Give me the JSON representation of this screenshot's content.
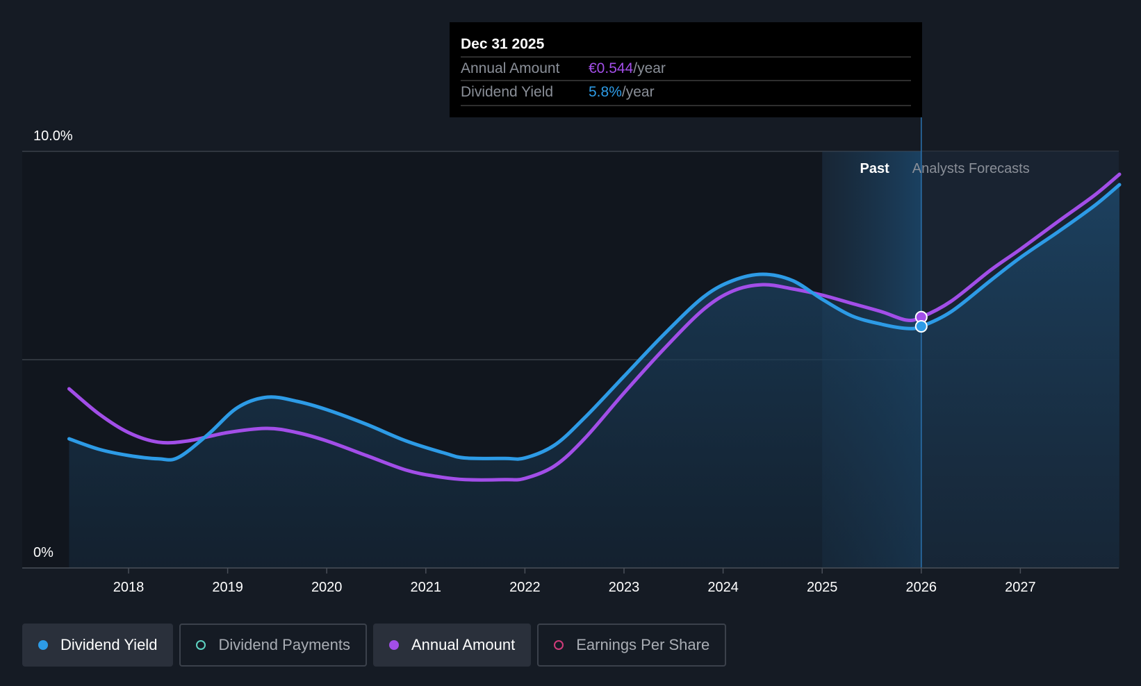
{
  "chart_data": {
    "type": "line",
    "y_axis": {
      "min": 0,
      "max": 10,
      "labels": [
        {
          "value": 10,
          "text": "10.0%"
        },
        {
          "value": 0,
          "text": "0%"
        }
      ],
      "gridlines": [
        10,
        5
      ]
    },
    "x_axis": {
      "min": 2017.35,
      "max": 2028.0,
      "ticks": [
        2018,
        2019,
        2020,
        2021,
        2022,
        2023,
        2024,
        2025,
        2026,
        2027
      ],
      "tick_labels": [
        "2018",
        "2019",
        "2020",
        "2021",
        "2022",
        "2023",
        "2024",
        "2025",
        "2026",
        "2027"
      ]
    },
    "regions": {
      "past_label": "Past",
      "forecast_label": "Analysts Forecasts",
      "past_band_start": 2025.0,
      "divider": 2026.0
    },
    "series": [
      {
        "name": "Dividend Yield",
        "color": "#2d9be6",
        "filled": true,
        "points": [
          [
            2017.4,
            3.1
          ],
          [
            2017.7,
            2.85
          ],
          [
            2018.0,
            2.7
          ],
          [
            2018.3,
            2.62
          ],
          [
            2018.5,
            2.65
          ],
          [
            2018.8,
            3.2
          ],
          [
            2019.1,
            3.85
          ],
          [
            2019.4,
            4.1
          ],
          [
            2019.7,
            4.0
          ],
          [
            2020.0,
            3.8
          ],
          [
            2020.4,
            3.45
          ],
          [
            2020.8,
            3.05
          ],
          [
            2021.2,
            2.75
          ],
          [
            2021.4,
            2.64
          ],
          [
            2021.8,
            2.63
          ],
          [
            2022.0,
            2.64
          ],
          [
            2022.3,
            2.95
          ],
          [
            2022.6,
            3.6
          ],
          [
            2023.0,
            4.6
          ],
          [
            2023.4,
            5.6
          ],
          [
            2023.8,
            6.5
          ],
          [
            2024.1,
            6.9
          ],
          [
            2024.4,
            7.05
          ],
          [
            2024.7,
            6.9
          ],
          [
            2025.0,
            6.45
          ],
          [
            2025.3,
            6.05
          ],
          [
            2025.6,
            5.85
          ],
          [
            2025.85,
            5.75
          ],
          [
            2026.0,
            5.8
          ],
          [
            2026.3,
            6.15
          ],
          [
            2026.7,
            6.9
          ],
          [
            2027.0,
            7.45
          ],
          [
            2027.4,
            8.1
          ],
          [
            2027.75,
            8.7
          ],
          [
            2028.0,
            9.2
          ]
        ]
      },
      {
        "name": "Annual Amount",
        "color": "#a24ee8",
        "filled": false,
        "points": [
          [
            2017.4,
            4.3
          ],
          [
            2017.7,
            3.7
          ],
          [
            2018.0,
            3.25
          ],
          [
            2018.3,
            3.02
          ],
          [
            2018.6,
            3.05
          ],
          [
            2019.0,
            3.25
          ],
          [
            2019.4,
            3.35
          ],
          [
            2019.7,
            3.25
          ],
          [
            2020.0,
            3.05
          ],
          [
            2020.4,
            2.7
          ],
          [
            2020.8,
            2.35
          ],
          [
            2021.1,
            2.2
          ],
          [
            2021.4,
            2.12
          ],
          [
            2021.8,
            2.12
          ],
          [
            2022.0,
            2.15
          ],
          [
            2022.3,
            2.45
          ],
          [
            2022.6,
            3.1
          ],
          [
            2023.0,
            4.2
          ],
          [
            2023.4,
            5.25
          ],
          [
            2023.8,
            6.2
          ],
          [
            2024.1,
            6.65
          ],
          [
            2024.4,
            6.8
          ],
          [
            2024.7,
            6.7
          ],
          [
            2025.0,
            6.55
          ],
          [
            2025.3,
            6.35
          ],
          [
            2025.6,
            6.15
          ],
          [
            2025.85,
            5.95
          ],
          [
            2026.0,
            6.02
          ],
          [
            2026.3,
            6.4
          ],
          [
            2026.7,
            7.15
          ],
          [
            2027.0,
            7.65
          ],
          [
            2027.4,
            8.35
          ],
          [
            2027.75,
            8.95
          ],
          [
            2028.0,
            9.45
          ]
        ]
      }
    ],
    "highlight": {
      "x": 2026.0,
      "yield_value": 5.8,
      "annual_value": 6.02
    }
  },
  "tooltip": {
    "date": "Dec 31 2025",
    "rows": [
      {
        "label": "Annual Amount",
        "value": "€0.544",
        "unit": "/year",
        "color": "#a24ee8"
      },
      {
        "label": "Dividend Yield",
        "value": "5.8%",
        "unit": "/year",
        "color": "#2d9be6"
      }
    ]
  },
  "legend": [
    {
      "label": "Dividend Yield",
      "color": "#2d9be6",
      "active": true,
      "filled": true
    },
    {
      "label": "Dividend Payments",
      "color": "#5ed3c2",
      "active": false,
      "filled": false
    },
    {
      "label": "Annual Amount",
      "color": "#a24ee8",
      "active": true,
      "filled": true
    },
    {
      "label": "Earnings Per Share",
      "color": "#d13b7a",
      "active": false,
      "filled": false
    }
  ]
}
